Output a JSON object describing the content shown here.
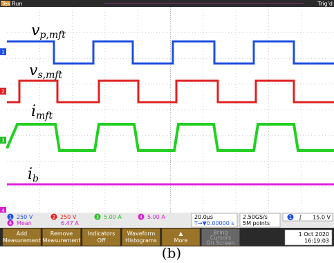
{
  "header": {
    "brand": "Tek",
    "state": "Run",
    "trigger_state": "Trig'd"
  },
  "waveform_labels": [
    {
      "symbol": "v",
      "subscript": "p,mft"
    },
    {
      "symbol": "v",
      "subscript": "s,mft"
    },
    {
      "symbol": "i",
      "subscript": "mft"
    },
    {
      "symbol": "i",
      "subscript": "b"
    }
  ],
  "channel_markers": [
    "1",
    "2",
    "3",
    "4"
  ],
  "channels": [
    {
      "number": "1",
      "scale": "250 V"
    },
    {
      "number": "2",
      "scale": "250 V"
    },
    {
      "number": "3",
      "scale": "5.00 A"
    },
    {
      "number": "4",
      "scale": "5.00 A"
    }
  ],
  "measurement": {
    "source": "4",
    "name": "Mean",
    "value": "6.47 A"
  },
  "horizontal": {
    "scale": "20.0µs",
    "position": "T→▼0.00000 s"
  },
  "acquisition": {
    "rate": "2.50GS/s",
    "length": "5M points"
  },
  "trigger": {
    "source": "1",
    "slope": "∫",
    "level": "15.0 V"
  },
  "menu": [
    {
      "line1": "Add",
      "line2": "Measurement"
    },
    {
      "line1": "Remove",
      "line2": "Measurement"
    },
    {
      "line1": "Indicators",
      "line2": "Off"
    },
    {
      "line1": "Waveform",
      "line2": "Histograms"
    },
    {
      "line1": "▲",
      "line2": "More"
    },
    {
      "line1": "Bring",
      "line2": "Cursors",
      "line3": "On Screen"
    }
  ],
  "datetime": {
    "date": "1 Oct  2020",
    "time": "16:19:03"
  },
  "caption": "(b)"
}
